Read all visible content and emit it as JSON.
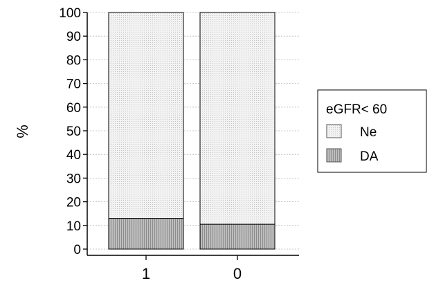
{
  "chart_data": {
    "type": "bar",
    "stacked": true,
    "percent": true,
    "categories": [
      "1",
      "0"
    ],
    "series": [
      {
        "name": "DA",
        "values": [
          13,
          10.5
        ],
        "pattern": "dark-dots"
      },
      {
        "name": "Ne",
        "values": [
          87,
          89.5
        ],
        "pattern": "light-dots"
      }
    ],
    "ylabel": "%",
    "xlabel": "",
    "ylim": [
      0,
      100
    ],
    "yticks": [
      0,
      10,
      20,
      30,
      40,
      50,
      60,
      70,
      80,
      90,
      100
    ],
    "grid": "horizontal-dashed",
    "legend": {
      "title": "eGFR< 60",
      "placement": "right",
      "items": [
        {
          "label": "Ne",
          "pattern": "light-dots"
        },
        {
          "label": "DA",
          "pattern": "dark-dots"
        }
      ]
    }
  }
}
